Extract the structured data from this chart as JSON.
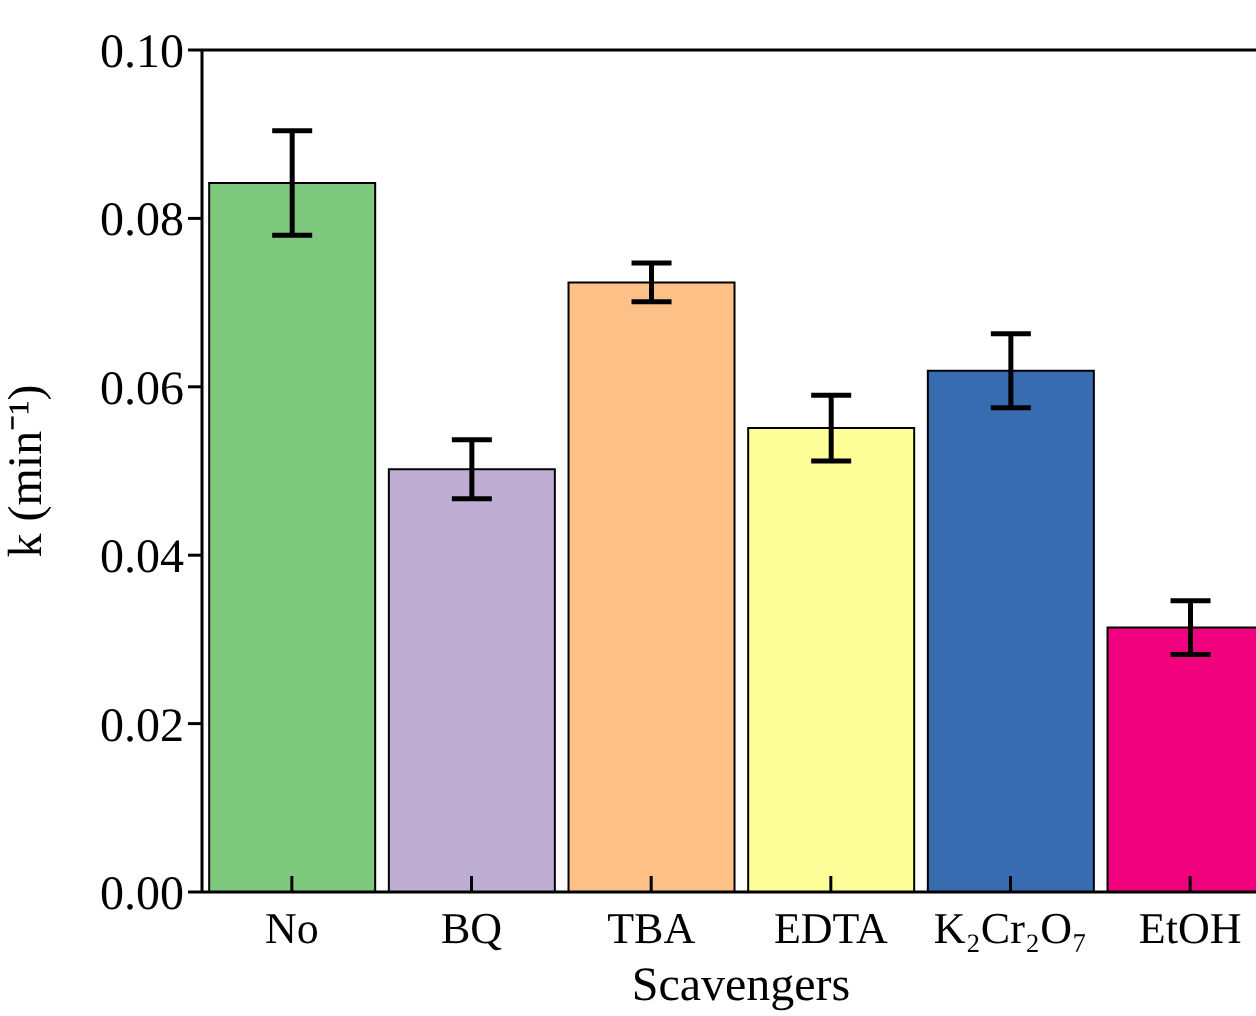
{
  "chart_data": {
    "type": "bar",
    "xlabel": "Scavengers",
    "ylabel": "k (min⁻¹)",
    "categories": [
      "No",
      "BQ",
      "TBA",
      "EDTA",
      "K₂Cr₂O₇",
      "EtOH"
    ],
    "values": [
      0.0842,
      0.0502,
      0.0724,
      0.0551,
      0.0619,
      0.0314
    ],
    "errors": [
      0.0062,
      0.0035,
      0.0023,
      0.0039,
      0.0044,
      0.0032
    ],
    "colors": [
      "#7fc97f",
      "#beaed4",
      "#fdc086",
      "#ffff99",
      "#386cb0",
      "#f0027f"
    ],
    "ylim": [
      0,
      0.1
    ],
    "yticks": [
      {
        "value": 0,
        "label": "0.00"
      },
      {
        "value": 0.02,
        "label": "0.02"
      },
      {
        "value": 0.04,
        "label": "0.04"
      },
      {
        "value": 0.06,
        "label": "0.06"
      },
      {
        "value": 0.08,
        "label": "0.08"
      },
      {
        "value": 0.1,
        "label": "0.10"
      }
    ],
    "grid": false,
    "legend": false
  }
}
